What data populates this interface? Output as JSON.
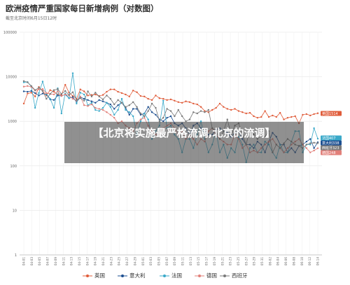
{
  "header": {
    "title": "欧洲疫情严重国家每日新增病例（对数图）",
    "subtitle": "截至北京时间6月15日12时"
  },
  "overlay": {
    "text": "【北京将实施最严格流调,北京的流调】"
  },
  "colors": {
    "英国": "#e05c3a",
    "意大利": "#1d4f91",
    "法国": "#3aa9c9",
    "德国": "#e2807a",
    "西班牙": "#7a7a7a"
  },
  "chart_data": {
    "type": "line",
    "title": "欧洲疫情严重国家每日新增病例（对数图）",
    "subtitle": "截至北京时间6月15日12时",
    "y_scale": "log",
    "ylim": [
      1,
      100000
    ],
    "y_ticks": [
      "1",
      "10",
      "100",
      "1000",
      "10000",
      "100000"
    ],
    "x_tick_labels": [
      "04-01",
      "04-03",
      "04-05",
      "04-07",
      "04-09",
      "04-11",
      "04-13",
      "04-15",
      "04-17",
      "04-19",
      "04-21",
      "04-23",
      "04-25",
      "04-27",
      "04-29",
      "05-01",
      "05-03",
      "05-05",
      "05-07",
      "05-09",
      "05-11",
      "05-13",
      "05-15",
      "05-17",
      "05-19",
      "05-21",
      "05-23",
      "05-25",
      "05-27",
      "05-29",
      "05-31",
      "06-02",
      "06-04",
      "06-06",
      "06-08",
      "06-10",
      "06-12",
      "06-14"
    ],
    "legend_position": "bottom",
    "end_labels": [
      {
        "series": "英国",
        "text": "英国1514"
      },
      {
        "series": "法国",
        "text": "法国407"
      },
      {
        "series": "意大利",
        "text": "意大利338"
      },
      {
        "series": "西班牙",
        "text": "西班牙323"
      },
      {
        "series": "德国",
        "text": "德国248"
      }
    ],
    "series": [
      {
        "name": "英国",
        "values": [
          2500,
          4200,
          4400,
          3600,
          5900,
          4800,
          3800,
          5000,
          4600,
          4000,
          3900,
          6600,
          4400,
          3700,
          3200,
          5200,
          4700,
          3800,
          3900,
          4000,
          3700,
          3900,
          4600,
          5200,
          5200,
          4600,
          4300,
          4000,
          3600,
          4900,
          4500,
          3700,
          3600,
          3200,
          3000,
          3800,
          3300,
          3200,
          3000,
          3100,
          2900,
          2700,
          2600,
          2800,
          2700,
          2500,
          2400,
          2100,
          1700,
          1600,
          1800,
          2000,
          2500,
          2100,
          1900,
          1800,
          1900,
          1700,
          1600,
          1500,
          1550,
          1300,
          1200,
          1250,
          1700,
          1250,
          1350,
          1250,
          1550,
          1100,
          1200,
          1250,
          1300,
          900,
          1400,
          1450,
          1350,
          1450,
          1514
        ]
      },
      {
        "name": "意大利",
        "values": [
          4700,
          4600,
          4800,
          4300,
          3800,
          4200,
          4000,
          3100,
          3000,
          3800,
          3700,
          4000,
          3300,
          3500,
          2700,
          3500,
          3200,
          3000,
          2800,
          2600,
          3000,
          2800,
          2600,
          2400,
          1900,
          2300,
          2600,
          2000,
          1400,
          1900,
          1900,
          1400,
          1500,
          2100,
          1600,
          1400,
          1100,
          1000,
          1200,
          1300,
          900,
          800,
          900,
          700,
          500,
          800,
          900,
          700,
          600,
          500,
          500,
          650,
          700,
          600,
          550,
          450,
          550,
          600,
          400,
          300,
          300,
          250,
          350,
          300,
          200,
          350,
          550,
          450,
          300,
          300,
          200,
          250,
          200,
          280,
          300,
          350,
          400,
          250,
          338
        ]
      },
      {
        "name": "法国",
        "values": [
          7500,
          7600,
          6000,
          2000,
          4300,
          7800,
          4100,
          3200,
          2000,
          5500,
          1500,
          4200,
          3300,
          12000,
          2500,
          4400,
          4000,
          2300,
          2600,
          1800,
          1700,
          2000,
          2600,
          2100,
          1400,
          1800,
          3200,
          1800,
          1600,
          1300,
          500,
          1000,
          1500,
          1100,
          400,
          600,
          800,
          2900,
          700,
          800,
          500,
          400,
          200,
          400,
          400,
          250,
          500,
          1000,
          400,
          200,
          300,
          600,
          200,
          300,
          150,
          250,
          200,
          450,
          300,
          120,
          250,
          300,
          200,
          200,
          350,
          300,
          200,
          150,
          300,
          200,
          200,
          350,
          600,
          600,
          200,
          300,
          300,
          700,
          407
        ]
      },
      {
        "name": "德国",
        "values": [
          6000,
          6200,
          5900,
          4900,
          5200,
          5300,
          4300,
          4100,
          4000,
          4700,
          3700,
          4000,
          3800,
          3200,
          2900,
          3600,
          2300,
          2200,
          2400,
          2000,
          1900,
          1800,
          1600,
          1400,
          1200,
          900,
          1000,
          800,
          700,
          600,
          900,
          1100,
          1200,
          800,
          600,
          500,
          500,
          700,
          800,
          900,
          700,
          500,
          600,
          400,
          500,
          400,
          300,
          400,
          350,
          600,
          700,
          500,
          400,
          350,
          300,
          300,
          500,
          400,
          250,
          300,
          200,
          220,
          200,
          250,
          300,
          350,
          400,
          300,
          250,
          200,
          250,
          300,
          350,
          400,
          300,
          250,
          200,
          220,
          248
        ]
      },
      {
        "name": "西班牙",
        "values": [
          8000,
          7500,
          6200,
          5000,
          5700,
          4800,
          3200,
          4100,
          5000,
          5300,
          4100,
          4800,
          3900,
          4500,
          3000,
          3300,
          2900,
          4700,
          3600,
          4400,
          3600,
          3100,
          3800,
          3200,
          2400,
          3000,
          2600,
          2100,
          2300,
          2700,
          2100,
          1500,
          1300,
          1700,
          2500,
          2000,
          1000,
          1200,
          1900,
          1700,
          1300,
          1800,
          1300,
          1000,
          1100,
          1600,
          1500,
          1700,
          1600,
          1800,
          700,
          600,
          400,
          600,
          1100,
          500,
          800,
          900,
          500,
          300,
          700,
          500,
          400,
          500,
          450,
          600,
          200,
          300,
          250,
          320,
          400,
          350,
          300,
          280,
          250,
          300,
          320,
          330,
          323
        ]
      }
    ]
  }
}
